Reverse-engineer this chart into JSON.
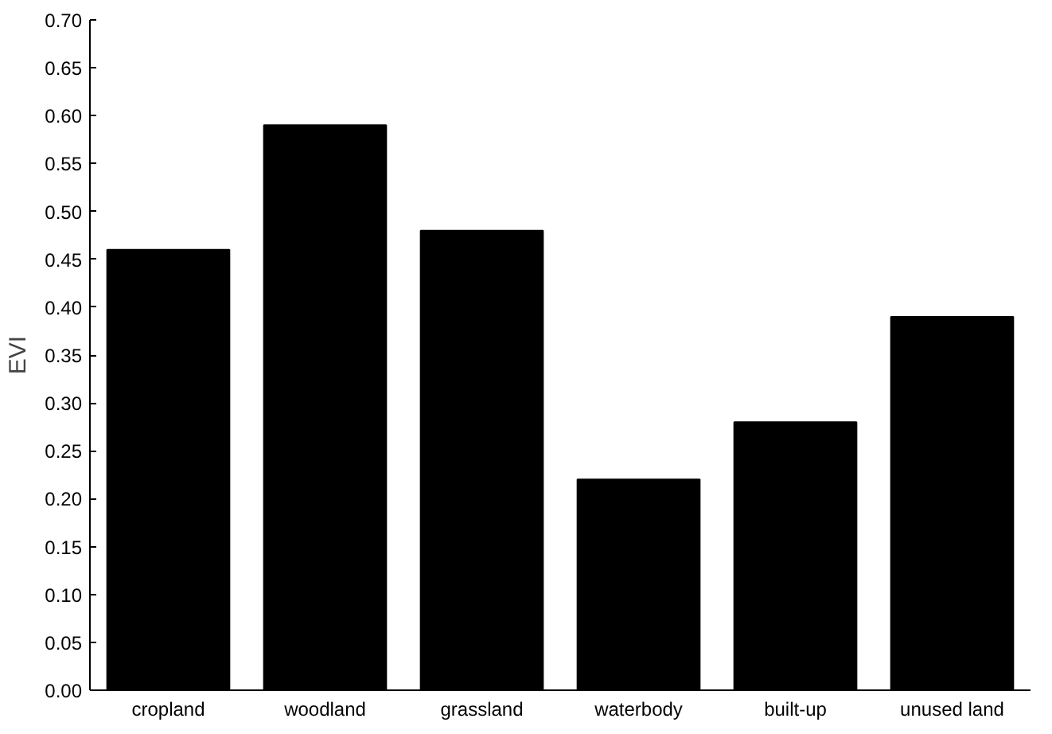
{
  "chart_data": {
    "type": "bar",
    "ylabel": "EVI",
    "categories": [
      "cropland",
      "woodland",
      "grassland",
      "waterbody",
      "built-up",
      "unused land"
    ],
    "values": [
      0.46,
      0.59,
      0.48,
      0.22,
      0.28,
      0.39
    ],
    "color": "#000000",
    "ylim": [
      0,
      0.7
    ],
    "yticks": [
      {
        "value": 0,
        "label": "0.00"
      },
      {
        "value": 0.05,
        "label": "0.05"
      },
      {
        "value": 0.1,
        "label": "0.10"
      },
      {
        "value": 0.15,
        "label": "0.15"
      },
      {
        "value": 0.2,
        "label": "0.20"
      },
      {
        "value": 0.25,
        "label": "0.25"
      },
      {
        "value": 0.3,
        "label": "0.30"
      },
      {
        "value": 0.35,
        "label": "0.35"
      },
      {
        "value": 0.4,
        "label": "0.40"
      },
      {
        "value": 0.45,
        "label": "0.45"
      },
      {
        "value": 0.5,
        "label": "0.50"
      },
      {
        "value": 0.55,
        "label": "0.55"
      },
      {
        "value": 0.6,
        "label": "0.60"
      },
      {
        "value": 0.65,
        "label": "0.65"
      },
      {
        "value": 0.7,
        "label": "0.70"
      }
    ],
    "grid": false
  }
}
